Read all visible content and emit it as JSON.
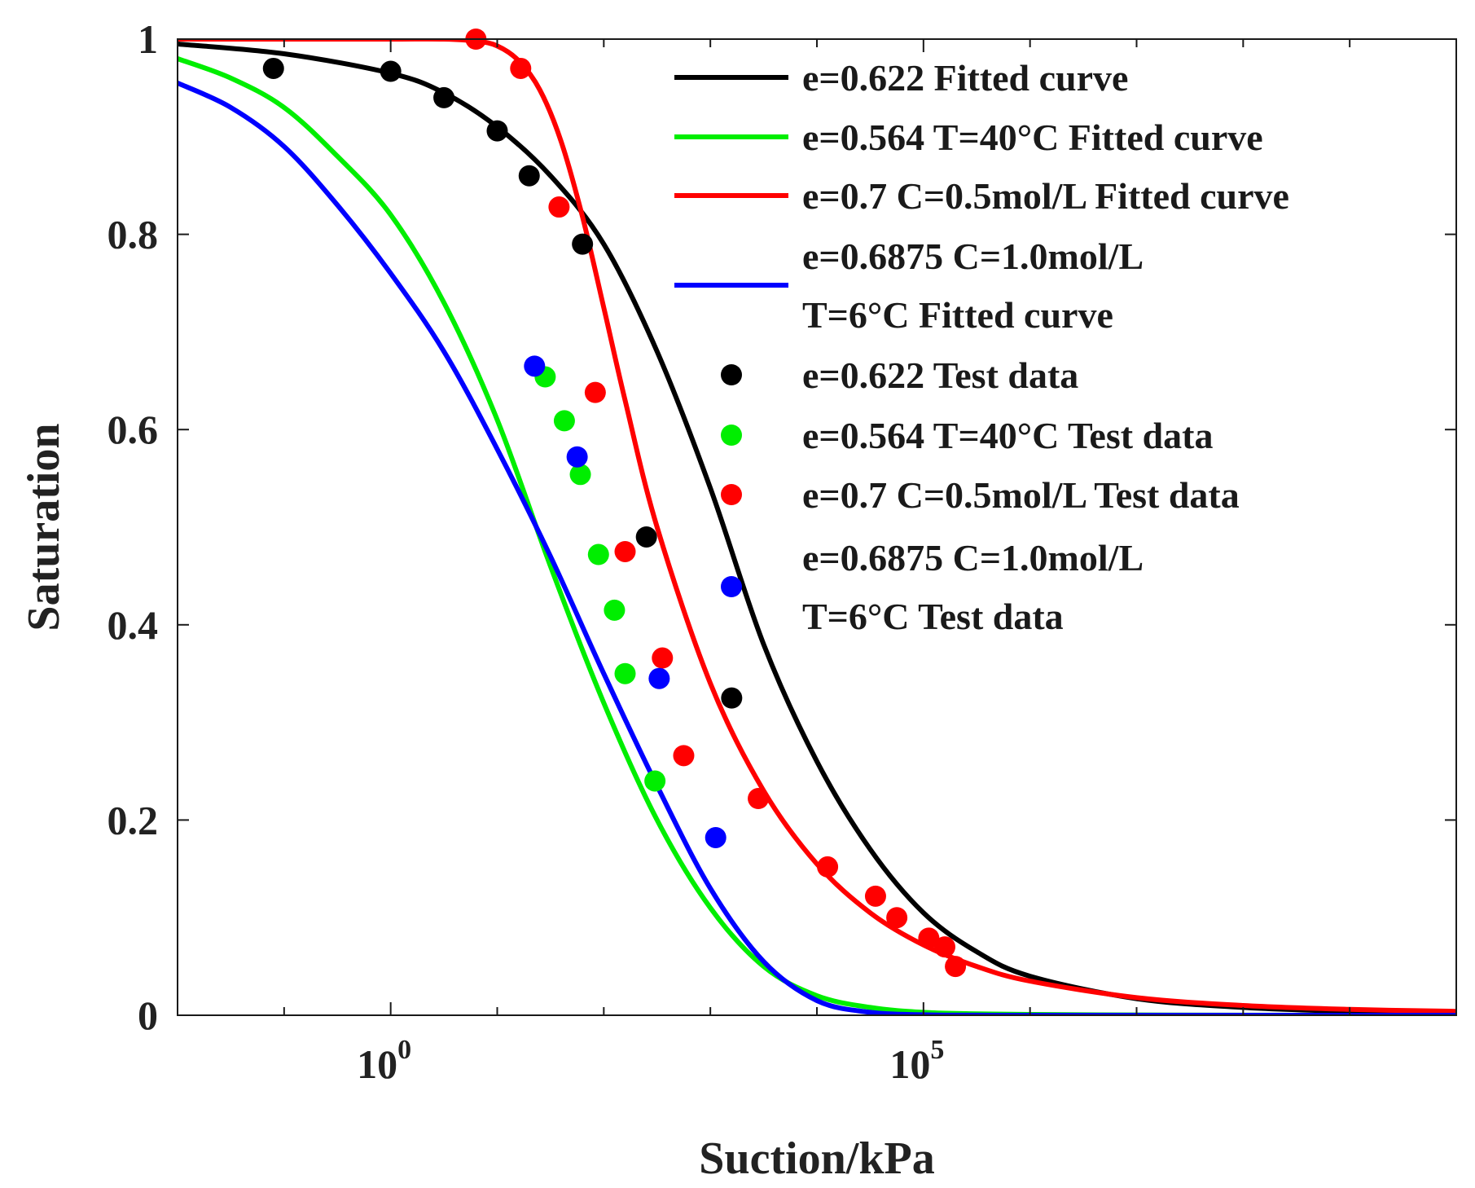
{
  "chart_data": {
    "type": "line",
    "title": "",
    "xlabel": "Suction/kPa",
    "ylabel": "Saturation",
    "xscale": "log",
    "xlim_log10": [
      -2,
      10
    ],
    "ylim": [
      0,
      1
    ],
    "x_ticks": [
      {
        "base": "10",
        "exp": "0",
        "log10": 0
      },
      {
        "base": "10",
        "exp": "5",
        "log10": 5
      }
    ],
    "y_ticks": [
      {
        "label": "0",
        "value": 0
      },
      {
        "label": "0.2",
        "value": 0.2
      },
      {
        "label": "0.4",
        "value": 0.4
      },
      {
        "label": "0.6",
        "value": 0.6
      },
      {
        "label": "0.8",
        "value": 0.8
      },
      {
        "label": "1",
        "value": 1
      }
    ],
    "legend_position": "top-right",
    "fitted_curves": [
      {
        "name": "e=0.622 Fitted curve",
        "label_lines": [
          "e=0.622 Fitted curve"
        ],
        "color": "#000000",
        "log10_suction": [
          -2.0,
          -1.0,
          0.0,
          0.5,
          1.0,
          1.5,
          2.0,
          2.5,
          3.0,
          3.5,
          4.0,
          4.5,
          5.0,
          5.5,
          6.0,
          7.0,
          8.0,
          9.0,
          10.0
        ],
        "saturation": [
          0.995,
          0.985,
          0.965,
          0.945,
          0.91,
          0.86,
          0.79,
          0.68,
          0.54,
          0.38,
          0.26,
          0.17,
          0.105,
          0.065,
          0.04,
          0.017,
          0.008,
          0.004,
          0.002
        ]
      },
      {
        "name": "e=0.564 T=40°C Fitted curve",
        "label_lines": [
          "e=0.564 T=40°C Fitted curve"
        ],
        "color": "#00ee00",
        "log10_suction": [
          -2.0,
          -1.5,
          -1.0,
          -0.5,
          0.0,
          0.5,
          1.0,
          1.5,
          2.0,
          2.5,
          3.0,
          3.5,
          4.0,
          4.5,
          5.0,
          5.5,
          6.0,
          7.0,
          8.0,
          10.0
        ],
        "saturation": [
          0.98,
          0.96,
          0.93,
          0.88,
          0.82,
          0.73,
          0.61,
          0.46,
          0.32,
          0.2,
          0.11,
          0.05,
          0.02,
          0.008,
          0.003,
          0.0015,
          0.0008,
          0.0003,
          0.0001,
          0.0
        ]
      },
      {
        "name": "e=0.7 C=0.5mol/L Fitted curve",
        "label_lines": [
          "e=0.7 C=0.5mol/L Fitted curve"
        ],
        "color": "#ff0000",
        "log10_suction": [
          -2.0,
          -1.0,
          0.0,
          0.5,
          0.8,
          1.0,
          1.2,
          1.4,
          1.6,
          1.8,
          2.0,
          2.2,
          2.5,
          3.0,
          3.5,
          4.0,
          4.5,
          5.0,
          5.5,
          6.0,
          7.0,
          8.0,
          9.0,
          10.0
        ],
        "saturation": [
          1.0,
          1.0,
          1.0,
          1.0,
          0.998,
          0.993,
          0.978,
          0.948,
          0.895,
          0.818,
          0.725,
          0.63,
          0.5,
          0.34,
          0.23,
          0.155,
          0.105,
          0.072,
          0.05,
          0.035,
          0.018,
          0.01,
          0.006,
          0.004
        ]
      },
      {
        "name": "e=0.6875 C=1.0mol/L T=6°C Fitted curve",
        "label_lines": [
          "e=0.6875 C=1.0mol/L",
          "T=6°C Fitted curve"
        ],
        "color": "#0000ff",
        "log10_suction": [
          -2.0,
          -1.5,
          -1.0,
          -0.5,
          0.0,
          0.5,
          1.0,
          1.5,
          2.0,
          2.5,
          3.0,
          3.5,
          4.0,
          4.5,
          5.0,
          5.5,
          6.0,
          7.0,
          8.0,
          10.0
        ],
        "saturation": [
          0.955,
          0.93,
          0.89,
          0.83,
          0.76,
          0.68,
          0.58,
          0.47,
          0.35,
          0.235,
          0.13,
          0.055,
          0.015,
          0.003,
          0.0005,
          0.0001,
          0.0,
          0.0,
          0.0,
          0.0
        ]
      }
    ],
    "test_data": [
      {
        "name": "e=0.622 Test data",
        "label_lines": [
          "e=0.622 Test data"
        ],
        "color": "#000000",
        "log10_suction": [
          -1.1,
          0.0,
          0.5,
          1.0,
          1.3,
          1.8,
          2.4,
          3.2
        ],
        "saturation": [
          0.97,
          0.967,
          0.94,
          0.906,
          0.86,
          0.79,
          0.49,
          0.325
        ]
      },
      {
        "name": "e=0.564 T=40°C Test data",
        "label_lines": [
          "e=0.564 T=40°C Test data"
        ],
        "color": "#00ee00",
        "log10_suction": [
          1.45,
          1.63,
          1.78,
          1.95,
          2.1,
          2.2,
          2.48
        ],
        "saturation": [
          0.654,
          0.609,
          0.554,
          0.472,
          0.415,
          0.35,
          0.24
        ]
      },
      {
        "name": "e=0.7 C=0.5mol/L Test data",
        "label_lines": [
          "e=0.7 C=0.5mol/L Test data"
        ],
        "color": "#ff0000",
        "log10_suction": [
          0.8,
          1.22,
          1.58,
          1.92,
          2.2,
          2.55,
          2.75,
          3.45,
          4.1,
          4.55,
          4.75,
          5.05,
          5.2,
          5.3
        ],
        "saturation": [
          1.0,
          0.97,
          0.828,
          0.638,
          0.475,
          0.366,
          0.266,
          0.222,
          0.152,
          0.122,
          0.1,
          0.079,
          0.07,
          0.05
        ]
      },
      {
        "name": "e=0.6875 C=1.0mol/L T=6°C Test data",
        "label_lines": [
          "e=0.6875 C=1.0mol/L",
          "T=6°C Test data"
        ],
        "color": "#0000ff",
        "log10_suction": [
          1.35,
          1.75,
          2.52,
          3.05
        ],
        "saturation": [
          0.665,
          0.572,
          0.345,
          0.182
        ]
      }
    ]
  }
}
